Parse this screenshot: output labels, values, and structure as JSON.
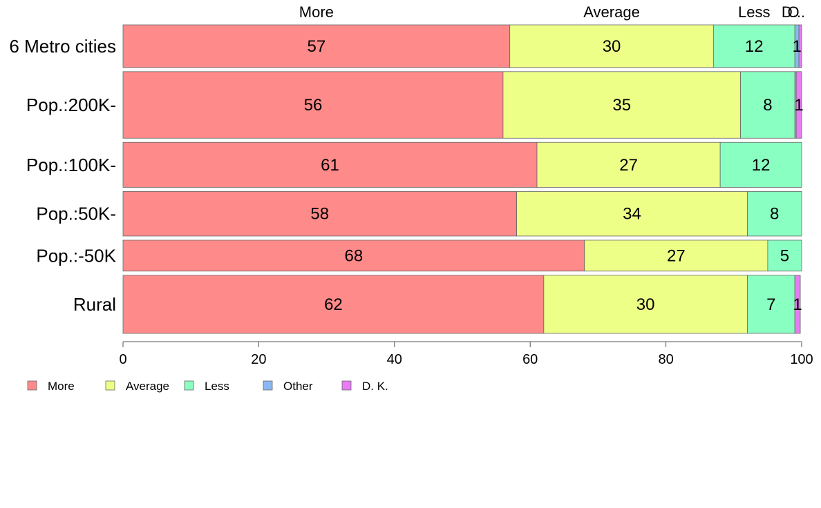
{
  "chart_data": {
    "type": "bar",
    "orientation": "horizontal",
    "stacked": true,
    "categories": [
      "6 Metro cities",
      "Pop.:200K-",
      "Pop.:100K-",
      "Pop.:50K-",
      "Pop.:-50K",
      "Rural"
    ],
    "row_weights": [
      0.91,
      1.42,
      0.96,
      0.95,
      0.66,
      1.24
    ],
    "series": [
      {
        "name": "More",
        "color": "#FF8A8A",
        "values": [
          57,
          56,
          61,
          58,
          68,
          62
        ]
      },
      {
        "name": "Average",
        "color": "#EEFF88",
        "values": [
          30,
          35,
          27,
          34,
          27,
          30
        ]
      },
      {
        "name": "Less",
        "color": "#8AFFC2",
        "values": [
          12,
          8,
          12,
          8,
          5,
          7
        ]
      },
      {
        "name": "Other",
        "color": "#8AB8F2",
        "values": [
          0.6,
          0.2,
          0,
          0,
          0,
          0
        ]
      },
      {
        "name": "D. K.",
        "color": "#E87CF4",
        "values": [
          0.4,
          0.8,
          0,
          0,
          0,
          0.8
        ]
      }
    ],
    "segment_labels": [
      [
        "57",
        "30",
        "12",
        "1",
        ""
      ],
      [
        "56",
        "35",
        "8",
        "",
        "1"
      ],
      [
        "61",
        "27",
        "12",
        "",
        ""
      ],
      [
        "58",
        "34",
        "8",
        "",
        ""
      ],
      [
        "68",
        "27",
        "5",
        "",
        ""
      ],
      [
        "62",
        "30",
        "7",
        "",
        "1"
      ]
    ],
    "top_labels": [
      "More",
      "Average",
      "Less",
      "O",
      "D..."
    ],
    "top_label_segments": [
      0,
      1,
      2,
      3,
      4
    ],
    "xlim": [
      0,
      100
    ],
    "xticks": [
      0,
      20,
      40,
      60,
      80,
      100
    ],
    "legend": {
      "position": "bottom-left",
      "items": [
        "More",
        "Average",
        "Less",
        "Other",
        "D. K."
      ]
    }
  }
}
